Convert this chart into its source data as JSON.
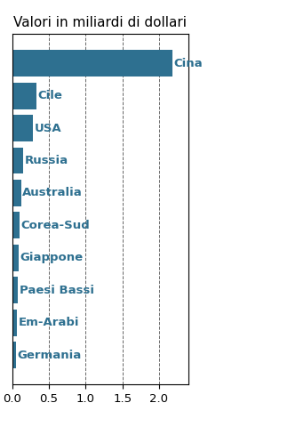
{
  "title": "Valori in miliardi di dollari",
  "categories": [
    "Germania",
    "Em-Arabi",
    "Paesi Bassi",
    "Giappone",
    "Corea-Sud",
    "Australia",
    "Russia",
    "USA",
    "Cile",
    "Cina"
  ],
  "labels": [
    "Germania",
    "Em-Arabi",
    "Paesi Bassi",
    "Giappone",
    "Corea-Sud",
    "Australia",
    "Russia",
    "USA",
    "Cile",
    "Cina"
  ],
  "values": [
    0.05,
    0.06,
    0.08,
    0.09,
    0.1,
    0.12,
    0.15,
    0.28,
    0.33,
    2.18
  ],
  "bar_color": "#2e7090",
  "background_color": "#ffffff",
  "xlim": [
    0,
    2.4
  ],
  "xticks": [
    0.0,
    0.5,
    1.0,
    1.5,
    2.0
  ],
  "title_fontsize": 11,
  "label_fontsize": 9.5,
  "tick_fontsize": 9.5
}
